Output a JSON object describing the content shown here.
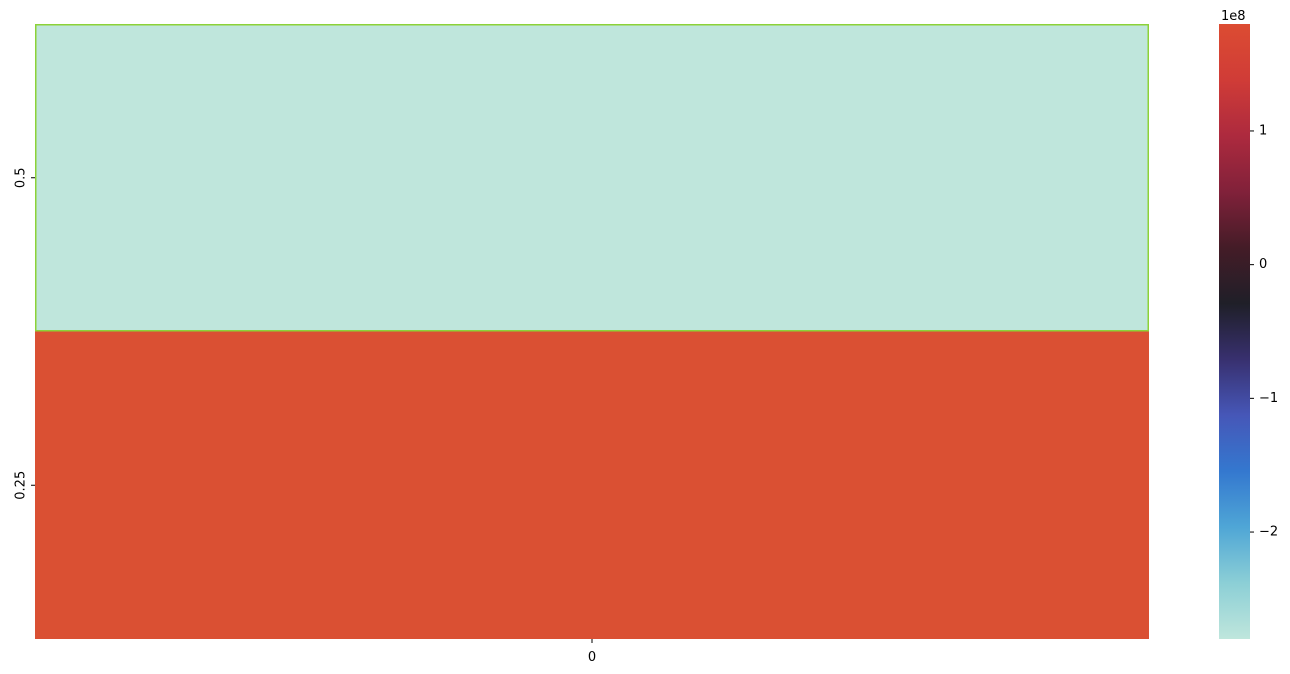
{
  "chart_data": {
    "type": "heatmap",
    "row_labels": [
      "0.5",
      "0.25"
    ],
    "column_labels": [
      "0"
    ],
    "values": [
      [
        -280000000
      ],
      [
        180000000
      ]
    ],
    "cell_colors": [
      "#bfe6dc",
      "#da5033"
    ],
    "highlight_border_color": "#8cd238",
    "colorbar": {
      "ticks": [
        1,
        0,
        -1,
        -2
      ],
      "tick_labels": [
        "1",
        "0",
        "−1",
        "−2"
      ],
      "offset_label": "1e8",
      "range": [
        -2.8,
        1.8
      ],
      "stops": [
        "#bfe6dc",
        "#8ccfd6",
        "#4fa6d6",
        "#3478cf",
        "#4657b8",
        "#38306f",
        "#1f1f28",
        "#441c27",
        "#81213a",
        "#ad2a3e",
        "#d03c37",
        "#dc4c32"
      ]
    }
  }
}
